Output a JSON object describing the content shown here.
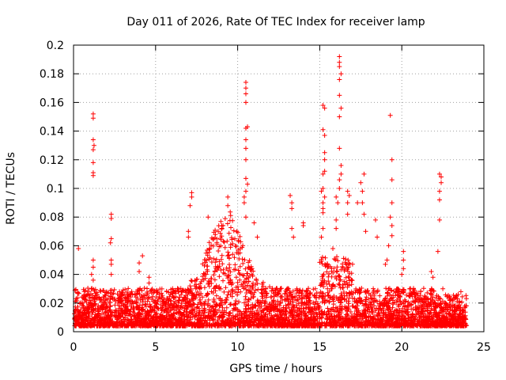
{
  "chart_data": {
    "type": "scatter",
    "title": "Day 011 of 2026, Rate Of TEC Index for receiver lamp",
    "xlabel": "GPS time / hours",
    "ylabel": "ROTI / TECUs",
    "xlim": [
      0,
      25
    ],
    "ylim": [
      0,
      0.2
    ],
    "x_ticks": [
      "0",
      "5",
      "10",
      "15",
      "20",
      "25"
    ],
    "y_ticks": [
      "0",
      "0.02",
      "0.04",
      "0.06",
      "0.08",
      "0.1",
      "0.12",
      "0.14",
      "0.16",
      "0.18",
      "0.2"
    ],
    "grid": true,
    "marker": "+",
    "color": "#ff0000",
    "series": [
      {
        "points": [
          [
            0.3,
            0.058
          ],
          [
            1.2,
            0.152
          ],
          [
            1.2,
            0.149
          ],
          [
            1.2,
            0.134
          ],
          [
            1.25,
            0.13
          ],
          [
            1.2,
            0.127
          ],
          [
            1.2,
            0.118
          ],
          [
            1.2,
            0.111
          ],
          [
            1.2,
            0.109
          ],
          [
            1.2,
            0.05
          ],
          [
            1.2,
            0.045
          ],
          [
            1.1,
            0.04
          ],
          [
            1.2,
            0.036
          ],
          [
            1.1,
            0.03
          ],
          [
            2.3,
            0.082
          ],
          [
            2.3,
            0.079
          ],
          [
            2.3,
            0.065
          ],
          [
            2.25,
            0.062
          ],
          [
            2.3,
            0.05
          ],
          [
            2.3,
            0.047
          ],
          [
            2.3,
            0.04
          ],
          [
            4.2,
            0.053
          ],
          [
            4.0,
            0.048
          ],
          [
            4.0,
            0.042
          ],
          [
            4.6,
            0.038
          ],
          [
            4.6,
            0.034
          ],
          [
            7.2,
            0.097
          ],
          [
            7.2,
            0.094
          ],
          [
            7.1,
            0.088
          ],
          [
            7.0,
            0.07
          ],
          [
            7.0,
            0.066
          ],
          [
            8.2,
            0.08
          ],
          [
            9.4,
            0.094
          ],
          [
            9.4,
            0.088
          ],
          [
            10.5,
            0.174
          ],
          [
            10.5,
            0.17
          ],
          [
            10.5,
            0.166
          ],
          [
            10.5,
            0.16
          ],
          [
            10.6,
            0.143
          ],
          [
            10.5,
            0.142
          ],
          [
            10.5,
            0.134
          ],
          [
            10.5,
            0.128
          ],
          [
            10.5,
            0.12
          ],
          [
            10.5,
            0.107
          ],
          [
            10.6,
            0.103
          ],
          [
            10.5,
            0.098
          ],
          [
            10.4,
            0.094
          ],
          [
            10.4,
            0.09
          ],
          [
            10.5,
            0.08
          ],
          [
            11.0,
            0.076
          ],
          [
            11.2,
            0.066
          ],
          [
            13.2,
            0.095
          ],
          [
            13.3,
            0.09
          ],
          [
            13.3,
            0.086
          ],
          [
            13.3,
            0.072
          ],
          [
            13.4,
            0.066
          ],
          [
            14.0,
            0.076
          ],
          [
            14.0,
            0.074
          ],
          [
            15.2,
            0.158
          ],
          [
            15.3,
            0.156
          ],
          [
            15.2,
            0.141
          ],
          [
            15.3,
            0.137
          ],
          [
            15.3,
            0.125
          ],
          [
            15.3,
            0.12
          ],
          [
            15.3,
            0.112
          ],
          [
            15.2,
            0.11
          ],
          [
            15.2,
            0.1
          ],
          [
            15.1,
            0.098
          ],
          [
            15.3,
            0.094
          ],
          [
            15.2,
            0.09
          ],
          [
            15.2,
            0.086
          ],
          [
            15.2,
            0.083
          ],
          [
            15.2,
            0.072
          ],
          [
            15.1,
            0.066
          ],
          [
            16.2,
            0.192
          ],
          [
            16.2,
            0.188
          ],
          [
            16.2,
            0.185
          ],
          [
            16.3,
            0.18
          ],
          [
            16.2,
            0.176
          ],
          [
            16.2,
            0.165
          ],
          [
            16.3,
            0.156
          ],
          [
            16.2,
            0.15
          ],
          [
            16.2,
            0.128
          ],
          [
            16.3,
            0.116
          ],
          [
            16.3,
            0.11
          ],
          [
            16.2,
            0.106
          ],
          [
            16.2,
            0.1
          ],
          [
            16.0,
            0.094
          ],
          [
            16.1,
            0.09
          ],
          [
            16.0,
            0.078
          ],
          [
            16.0,
            0.072
          ],
          [
            15.8,
            0.058
          ],
          [
            16.7,
            0.098
          ],
          [
            16.8,
            0.095
          ],
          [
            16.7,
            0.09
          ],
          [
            16.7,
            0.082
          ],
          [
            17.3,
            0.09
          ],
          [
            17.5,
            0.104
          ],
          [
            17.7,
            0.11
          ],
          [
            17.6,
            0.098
          ],
          [
            17.6,
            0.09
          ],
          [
            17.7,
            0.082
          ],
          [
            17.8,
            0.07
          ],
          [
            18.4,
            0.078
          ],
          [
            18.5,
            0.066
          ],
          [
            19.3,
            0.151
          ],
          [
            19.4,
            0.12
          ],
          [
            19.4,
            0.106
          ],
          [
            19.4,
            0.09
          ],
          [
            19.3,
            0.08
          ],
          [
            19.4,
            0.074
          ],
          [
            19.4,
            0.067
          ],
          [
            19.2,
            0.06
          ],
          [
            19.1,
            0.05
          ],
          [
            19.0,
            0.047
          ],
          [
            20.1,
            0.056
          ],
          [
            20.1,
            0.05
          ],
          [
            20.1,
            0.044
          ],
          [
            20.0,
            0.04
          ],
          [
            21.8,
            0.042
          ],
          [
            21.9,
            0.038
          ],
          [
            22.3,
            0.11
          ],
          [
            22.4,
            0.108
          ],
          [
            22.4,
            0.104
          ],
          [
            22.3,
            0.098
          ],
          [
            22.3,
            0.092
          ],
          [
            22.3,
            0.078
          ],
          [
            22.2,
            0.056
          ],
          [
            22.5,
            0.03
          ],
          [
            23.6,
            0.028
          ]
        ]
      }
    ]
  }
}
